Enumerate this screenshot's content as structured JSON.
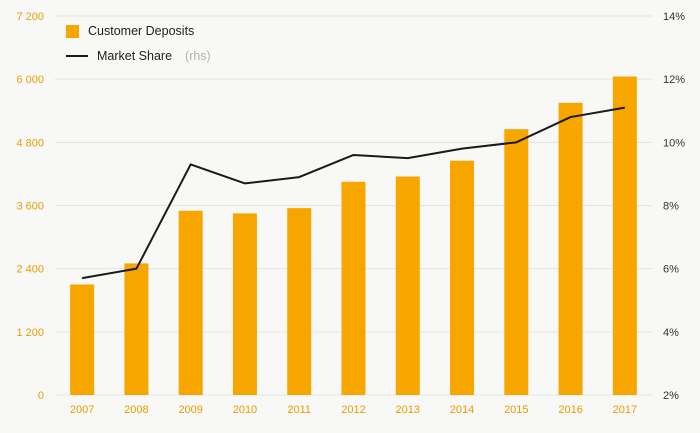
{
  "chart_data": {
    "type": "bar+line",
    "title": "",
    "categories": [
      "2007",
      "2008",
      "2009",
      "2010",
      "2011",
      "2012",
      "2013",
      "2014",
      "2015",
      "2016",
      "2017"
    ],
    "series": [
      {
        "name": "Customer Deposits",
        "type": "bar",
        "axis": "left",
        "color": "#F7A600",
        "values": [
          2100,
          2500,
          3500,
          3450,
          3550,
          4050,
          4150,
          4450,
          5050,
          5550,
          6050
        ]
      },
      {
        "name": "Market Share",
        "type": "line",
        "axis": "right",
        "color": "#1a1a1a",
        "values": [
          5.7,
          6.0,
          9.3,
          8.7,
          8.9,
          9.6,
          9.5,
          9.8,
          10.0,
          10.8,
          11.1
        ]
      }
    ],
    "axes": {
      "left": {
        "min": 0,
        "max": 7200,
        "tick_values": [
          0,
          1200,
          2400,
          3600,
          4800,
          6000,
          7200
        ],
        "tick_labels": [
          "0",
          "1 200",
          "2 400",
          "3 600",
          "4 800",
          "6 000",
          "7 200"
        ]
      },
      "right": {
        "min": 2,
        "max": 14,
        "tick_values": [
          2,
          4,
          6,
          8,
          10,
          12,
          14
        ],
        "tick_labels": [
          "2%",
          "4%",
          "6%",
          "8%",
          "10%",
          "12%",
          "14%"
        ]
      }
    },
    "legend": [
      {
        "label": "Customer Deposits",
        "swatch": "square",
        "color": "#F7A600"
      },
      {
        "label": "Market Share",
        "suffix": "(rhs)",
        "swatch": "line",
        "color": "#1a1a1a"
      }
    ],
    "legend_position": "top-left",
    "grid": true
  },
  "colors": {
    "background": "#f8f8f6",
    "grid": "#e4e4e1",
    "left_axis_text": "#E89C00",
    "right_axis_text": "#333333",
    "x_axis_text": "#E89C00",
    "legend_text": "#222222",
    "rhs_suffix_text": "#b3b3b3"
  }
}
